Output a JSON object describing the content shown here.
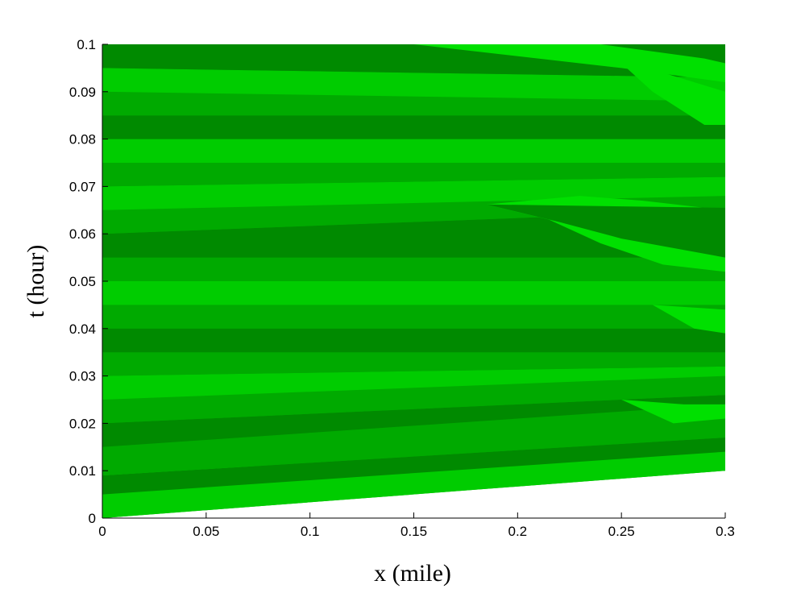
{
  "chart_data": {
    "type": "heatmap",
    "title": "",
    "xlabel": "x (mile)",
    "ylabel": "t (hour)",
    "xlim": [
      0,
      0.3
    ],
    "ylim": [
      0,
      0.1
    ],
    "xticks": [
      "0",
      "0.05",
      "0.1",
      "0.15",
      "0.2",
      "0.25",
      "0.3"
    ],
    "xtick_values": [
      0,
      0.05,
      0.1,
      0.15,
      0.2,
      0.25,
      0.3
    ],
    "yticks": [
      "0",
      "0.01",
      "0.02",
      "0.03",
      "0.04",
      "0.05",
      "0.06",
      "0.07",
      "0.08",
      "0.09",
      "0.1"
    ],
    "ytick_values": [
      0,
      0.01,
      0.02,
      0.03,
      0.04,
      0.05,
      0.06,
      0.07,
      0.08,
      0.09,
      0.1
    ],
    "grid": false,
    "colors": {
      "dark": "#008a00",
      "medium": "#00aa00",
      "light": "#00cc00",
      "bright": "#00e000",
      "empty": "#ffffff"
    },
    "domain_boundary": [
      [
        0,
        0
      ],
      [
        0.3,
        0.01
      ]
    ],
    "bands": [
      {
        "shade": "light",
        "left": [
          0.0,
          0.01
        ],
        "right": [
          0.3,
          0.014
        ]
      },
      {
        "shade": "dark",
        "left": [
          0.005,
          0.009
        ],
        "right": [
          0.3,
          0.017
        ]
      },
      {
        "shade": "medium",
        "left": [
          0.009,
          0.015
        ],
        "right": [
          0.3,
          0.024
        ]
      },
      {
        "shade": "dark",
        "left": [
          0.015,
          0.02
        ],
        "right": [
          0.3,
          0.026
        ]
      },
      {
        "shade": "medium",
        "left": [
          0.02,
          0.025
        ],
        "right": [
          0.3,
          0.03
        ]
      },
      {
        "shade": "light",
        "left": [
          0.025,
          0.03
        ],
        "right": [
          0.3,
          0.032
        ]
      },
      {
        "shade": "medium",
        "left": [
          0.03,
          0.035
        ],
        "right": [
          0.3,
          0.035
        ]
      },
      {
        "shade": "dark",
        "left": [
          0.035,
          0.04
        ],
        "right": [
          0.3,
          0.04
        ]
      },
      {
        "shade": "medium",
        "left": [
          0.04,
          0.045
        ],
        "right": [
          0.3,
          0.045
        ]
      },
      {
        "shade": "light",
        "left": [
          0.045,
          0.05
        ],
        "right": [
          0.3,
          0.05
        ]
      },
      {
        "shade": "medium",
        "left": [
          0.05,
          0.055
        ],
        "right": [
          0.3,
          0.055
        ]
      },
      {
        "shade": "dark",
        "left": [
          0.055,
          0.06
        ],
        "right": [
          0.3,
          0.065
        ]
      },
      {
        "shade": "medium",
        "left": [
          0.06,
          0.065
        ],
        "right": [
          0.3,
          0.068
        ]
      },
      {
        "shade": "light",
        "left": [
          0.065,
          0.07
        ],
        "right": [
          0.3,
          0.072
        ]
      },
      {
        "shade": "medium",
        "left": [
          0.07,
          0.075
        ],
        "right": [
          0.3,
          0.075
        ]
      },
      {
        "shade": "light",
        "left": [
          0.075,
          0.08
        ],
        "right": [
          0.3,
          0.08
        ]
      },
      {
        "shade": "dark",
        "left": [
          0.08,
          0.085
        ],
        "right": [
          0.3,
          0.085
        ]
      },
      {
        "shade": "medium",
        "left": [
          0.085,
          0.09
        ],
        "right": [
          0.3,
          0.088
        ]
      },
      {
        "shade": "light",
        "left": [
          0.09,
          0.095
        ],
        "right": [
          0.3,
          0.093
        ]
      },
      {
        "shade": "dark",
        "left": [
          0.095,
          0.1
        ],
        "right": [
          0.3,
          0.1
        ]
      }
    ],
    "regions": [
      {
        "shade": "bright",
        "points": [
          [
            0.185,
            0.0662
          ],
          [
            0.215,
            0.063
          ],
          [
            0.24,
            0.058
          ],
          [
            0.27,
            0.0535
          ],
          [
            0.3,
            0.052
          ],
          [
            0.3,
            0.055
          ],
          [
            0.3,
            0.065
          ],
          [
            0.26,
            0.067
          ],
          [
            0.23,
            0.068
          ]
        ]
      },
      {
        "shade": "dark",
        "points": [
          [
            0.185,
            0.0662
          ],
          [
            0.3,
            0.0655
          ],
          [
            0.3,
            0.055
          ],
          [
            0.25,
            0.059
          ],
          [
            0.22,
            0.0625
          ]
        ]
      },
      {
        "shade": "bright",
        "points": [
          [
            0.15,
            0.1
          ],
          [
            0.24,
            0.1
          ],
          [
            0.29,
            0.097
          ],
          [
            0.3,
            0.096
          ],
          [
            0.3,
            0.092
          ],
          [
            0.25,
            0.095
          ]
        ]
      },
      {
        "shade": "bright",
        "points": [
          [
            0.24,
            0.1
          ],
          [
            0.265,
            0.09
          ],
          [
            0.29,
            0.083
          ],
          [
            0.3,
            0.083
          ],
          [
            0.3,
            0.09
          ],
          [
            0.27,
            0.094
          ]
        ]
      },
      {
        "shade": "bright",
        "points": [
          [
            0.265,
            0.045
          ],
          [
            0.3,
            0.044
          ],
          [
            0.3,
            0.039
          ],
          [
            0.285,
            0.04
          ]
        ]
      },
      {
        "shade": "bright",
        "points": [
          [
            0.25,
            0.025
          ],
          [
            0.275,
            0.02
          ],
          [
            0.3,
            0.021
          ],
          [
            0.3,
            0.024
          ],
          [
            0.28,
            0.024
          ]
        ]
      }
    ]
  }
}
